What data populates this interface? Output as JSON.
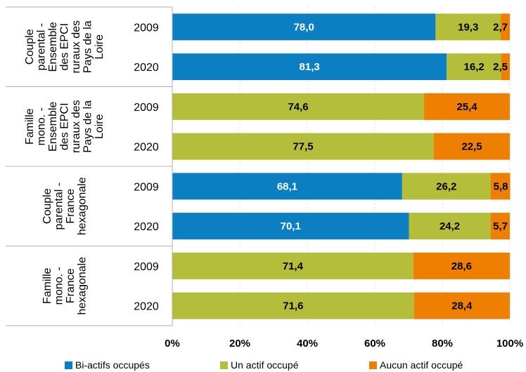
{
  "chart_data": {
    "type": "bar",
    "orientation": "horizontal",
    "stacked": true,
    "groups": [
      {
        "label_lines": [
          "Couple",
          "parental -",
          "Ensemble",
          "des EPCI",
          "ruraux des",
          "Pays de la",
          "Loire"
        ],
        "rows": [
          {
            "year": "2009",
            "values": [
              78.0,
              19.3,
              2.7
            ],
            "labels": [
              "78,0",
              "19,3",
              "2,7"
            ]
          },
          {
            "year": "2020",
            "values": [
              81.3,
              16.2,
              2.5
            ],
            "labels": [
              "81,3",
              "16,2",
              "2,5"
            ]
          }
        ]
      },
      {
        "label_lines": [
          "Famille",
          "mono. -",
          "Ensemble",
          "des EPCI",
          "ruraux des",
          "Pays de la",
          "Loire"
        ],
        "rows": [
          {
            "year": "2009",
            "values": [
              0,
              74.6,
              25.4
            ],
            "labels": [
              "",
              "74,6",
              "25,4"
            ]
          },
          {
            "year": "2020",
            "values": [
              0,
              77.5,
              22.5
            ],
            "labels": [
              "",
              "77,5",
              "22,5"
            ]
          }
        ]
      },
      {
        "label_lines": [
          "Couple",
          "parental -",
          "France",
          "hexagonale"
        ],
        "rows": [
          {
            "year": "2009",
            "values": [
              68.1,
              26.2,
              5.8
            ],
            "labels": [
              "68,1",
              "26,2",
              "5,8"
            ]
          },
          {
            "year": "2020",
            "values": [
              70.1,
              24.2,
              5.7
            ],
            "labels": [
              "70,1",
              "24,2",
              "5,7"
            ]
          }
        ]
      },
      {
        "label_lines": [
          "Famille",
          "mono. -",
          "France",
          "hexagonale"
        ],
        "rows": [
          {
            "year": "2009",
            "values": [
              0,
              71.4,
              28.6
            ],
            "labels": [
              "",
              "71,4",
              "28,6"
            ]
          },
          {
            "year": "2020",
            "values": [
              0,
              71.6,
              28.4
            ],
            "labels": [
              "",
              "71,6",
              "28,4"
            ]
          }
        ]
      }
    ],
    "series": [
      {
        "name": "Bi-actifs occupés",
        "color": "#0b7fc1",
        "label_color": "#ffffff"
      },
      {
        "name": "Un actif occupé",
        "color": "#b5be3a",
        "label_color": "#000000"
      },
      {
        "name": "Aucun actif occupé",
        "color": "#ee7f00",
        "label_color": "#000000"
      }
    ],
    "xlim": [
      0,
      100
    ],
    "xticks": [
      0,
      20,
      40,
      60,
      80,
      100
    ],
    "xtick_labels": [
      "0%",
      "20%",
      "40%",
      "60%",
      "80%",
      "100%"
    ],
    "grid": "vertical",
    "legend_position": "bottom"
  }
}
